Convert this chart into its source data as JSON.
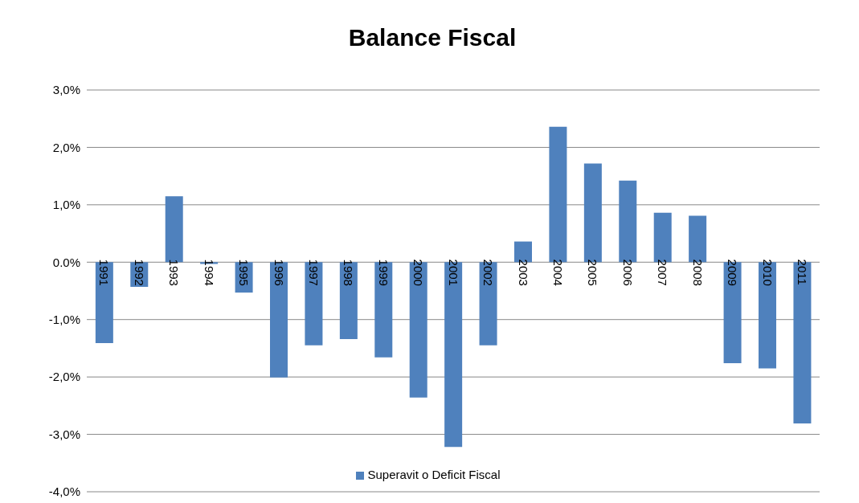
{
  "chart_data": {
    "type": "bar",
    "title": "Balance Fiscal",
    "categories": [
      "1991",
      "1992",
      "1993",
      "1994",
      "1995",
      "1996",
      "1997",
      "1998",
      "1999",
      "2000",
      "2001",
      "2002",
      "2003",
      "2004",
      "2005",
      "2006",
      "2007",
      "2008",
      "2009",
      "2010",
      "2011"
    ],
    "series": [
      {
        "name": "Superavit o Deficit Fiscal",
        "color": "#4f81bd",
        "values": [
          -1.41,
          -0.43,
          1.15,
          -0.03,
          -0.53,
          -2.01,
          -1.45,
          -1.34,
          -1.66,
          -2.36,
          -3.22,
          -1.45,
          0.36,
          2.36,
          1.72,
          1.42,
          0.86,
          0.81,
          -1.76,
          -1.85,
          -2.81
        ]
      }
    ],
    "ylim": [
      -4,
      3
    ],
    "yticks": [
      {
        "value": -4,
        "label": "-4,0%"
      },
      {
        "value": -3,
        "label": "-3,0%"
      },
      {
        "value": -2,
        "label": "-2,0%"
      },
      {
        "value": -1,
        "label": "-1,0%"
      },
      {
        "value": 0,
        "label": "0.0%"
      },
      {
        "value": 1,
        "label": "1,0%"
      },
      {
        "value": 2,
        "label": "2,0%"
      },
      {
        "value": 3,
        "label": "3,0%"
      }
    ],
    "grid": "y",
    "legend": "bottom"
  }
}
